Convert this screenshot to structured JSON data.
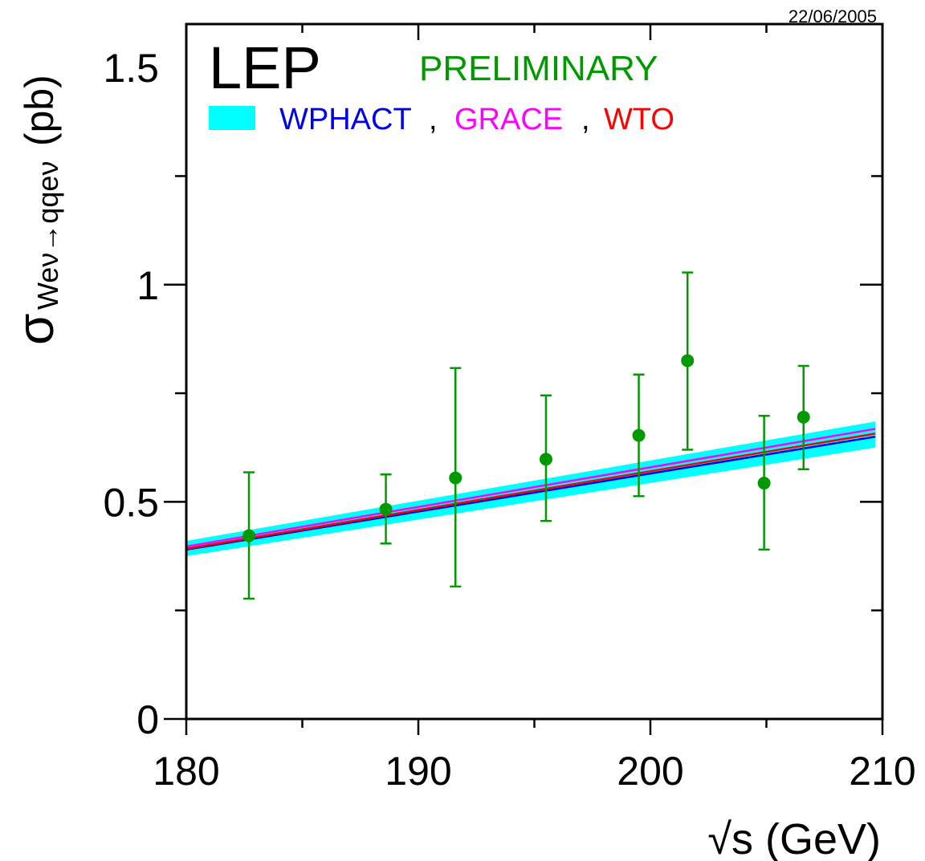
{
  "chart_data": {
    "type": "scatter",
    "date_stamp": "22/06/2005",
    "experiment_label": "LEP",
    "status_label": "PRELIMINARY",
    "xlabel": "√s (GeV)",
    "ylabel": {
      "sigma": "σ",
      "subscript": "Weν→qqeν",
      "unit": "(pb)"
    },
    "xlim": [
      180,
      210
    ],
    "ylim": [
      0,
      1.6
    ],
    "x_ticks": [
      180,
      190,
      200,
      210
    ],
    "x_tick_labels": [
      "180",
      "190",
      "200",
      "210"
    ],
    "y_ticks": [
      0,
      0.5,
      1,
      1.5
    ],
    "y_tick_labels": [
      "0",
      "0.5",
      "1",
      "1.5"
    ],
    "legend": {
      "entries": [
        {
          "name": "WPHACT",
          "color": "#0000ee"
        },
        {
          "name": "GRACE",
          "color": "#ff00ff"
        },
        {
          "name": "WTO",
          "color": "#ff0000"
        }
      ],
      "separator": ","
    },
    "colors": {
      "data": "#009900",
      "band": "#00ffff",
      "axes": "#000000"
    },
    "band": {
      "x": [
        180,
        209.7
      ],
      "lower": [
        0.375,
        0.625
      ],
      "upper": [
        0.41,
        0.685
      ]
    },
    "series": [
      {
        "name": "WPHACT",
        "x": [
          180,
          209.7
        ],
        "y": [
          0.39,
          0.65
        ]
      },
      {
        "name": "GRACE",
        "x": [
          180,
          209.7
        ],
        "y": [
          0.397,
          0.668
        ]
      },
      {
        "name": "WTO",
        "x": [
          180,
          209.7
        ],
        "y": [
          0.392,
          0.657
        ]
      }
    ],
    "points": [
      {
        "x": 182.7,
        "y": 0.422,
        "err_low": 0.277,
        "err_high": 0.568
      },
      {
        "x": 188.6,
        "y": 0.483,
        "err_low": 0.404,
        "err_high": 0.563
      },
      {
        "x": 191.6,
        "y": 0.555,
        "err_low": 0.305,
        "err_high": 0.808
      },
      {
        "x": 195.5,
        "y": 0.598,
        "err_low": 0.456,
        "err_high": 0.745
      },
      {
        "x": 199.5,
        "y": 0.653,
        "err_low": 0.513,
        "err_high": 0.793
      },
      {
        "x": 201.6,
        "y": 0.825,
        "err_low": 0.62,
        "err_high": 1.028
      },
      {
        "x": 204.9,
        "y": 0.543,
        "err_low": 0.39,
        "err_high": 0.698
      },
      {
        "x": 206.6,
        "y": 0.695,
        "err_low": 0.575,
        "err_high": 0.813
      }
    ]
  }
}
